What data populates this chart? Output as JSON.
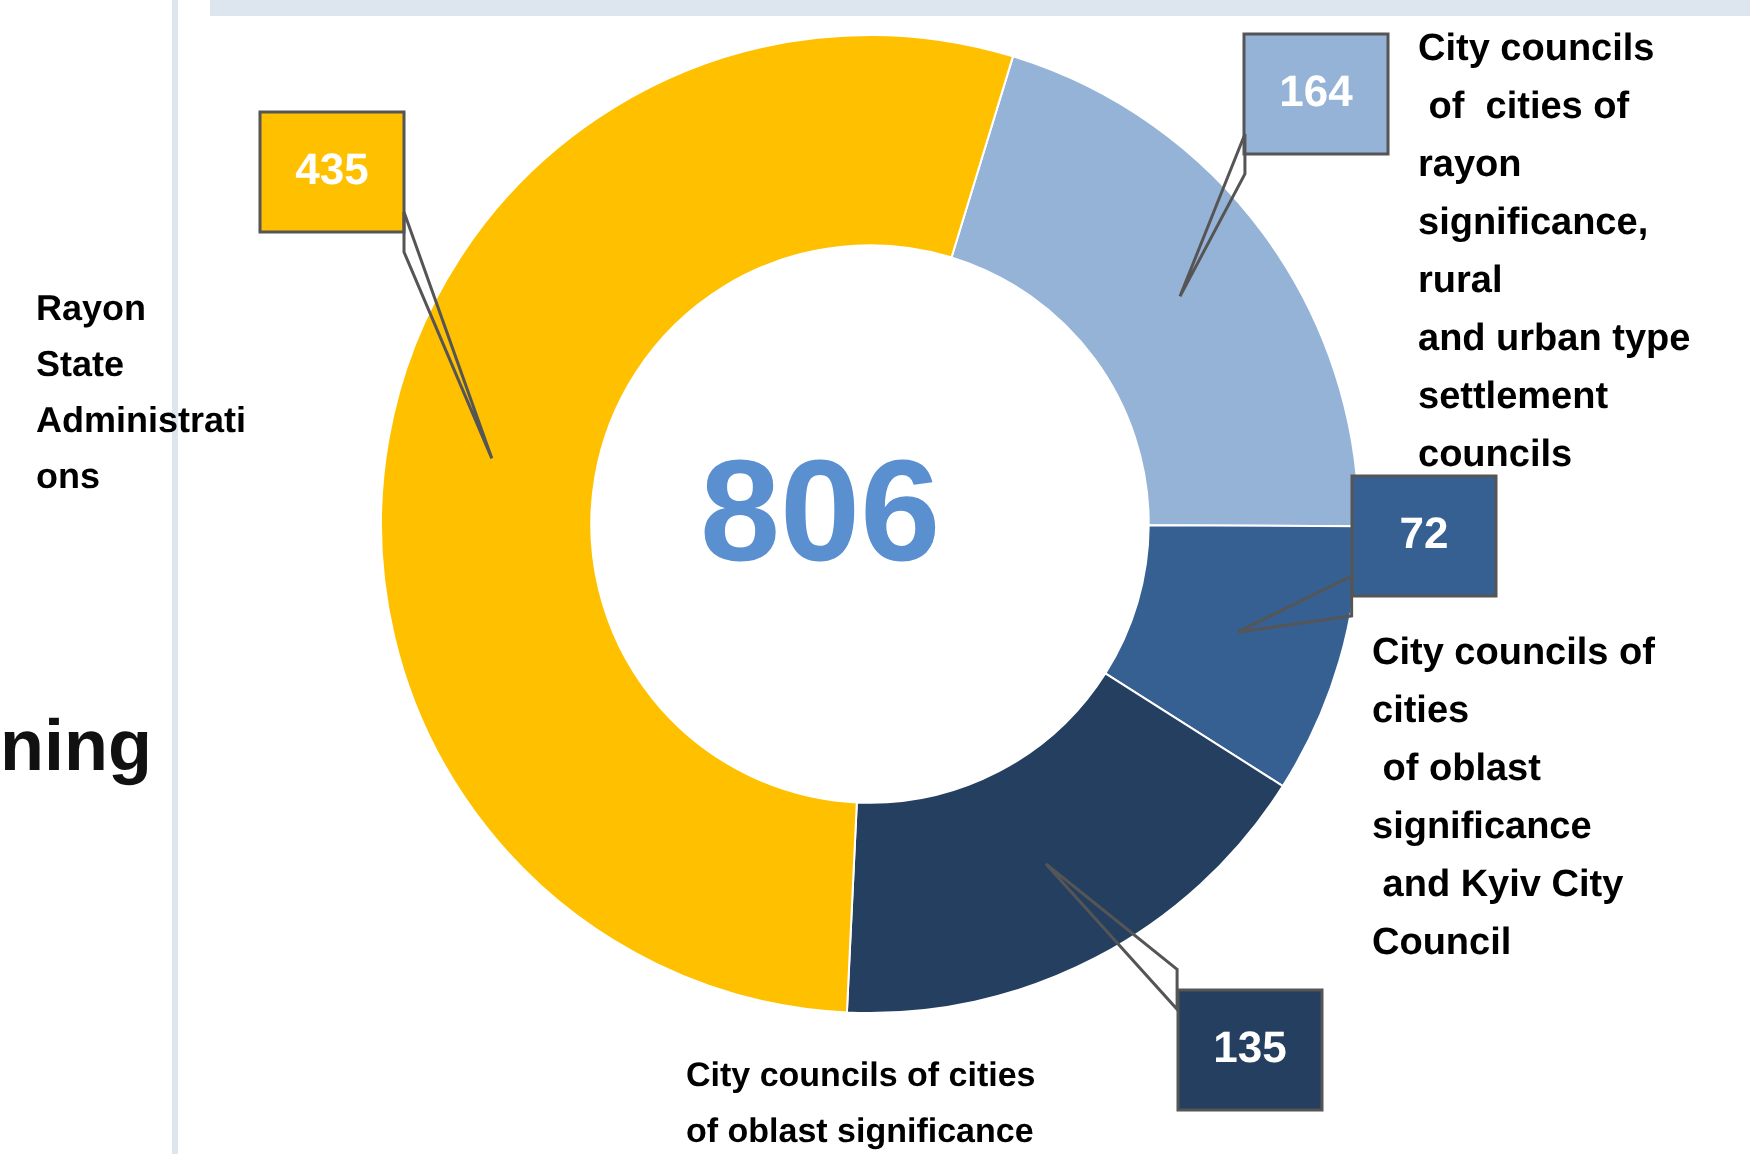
{
  "chart_data": {
    "type": "donut",
    "categories": [
      "City councils\n of  cities of\nrayon\nsignificance,\nrural\nand urban type\nsettlement\ncouncils",
      "City councils of\ncities\n of oblast\nsignificance\n and Kyiv City\nCouncil",
      "City councils of cities\nof oblast significance",
      "Rayon\nState\nAdministrati\nons"
    ],
    "values": [
      164,
      72,
      135,
      435
    ],
    "colors": [
      "#95b3d7",
      "#366092",
      "#243f60",
      "#ffc000"
    ],
    "data_labels": true,
    "legend": false,
    "annotations": [
      "806",
      "ning"
    ]
  }
}
